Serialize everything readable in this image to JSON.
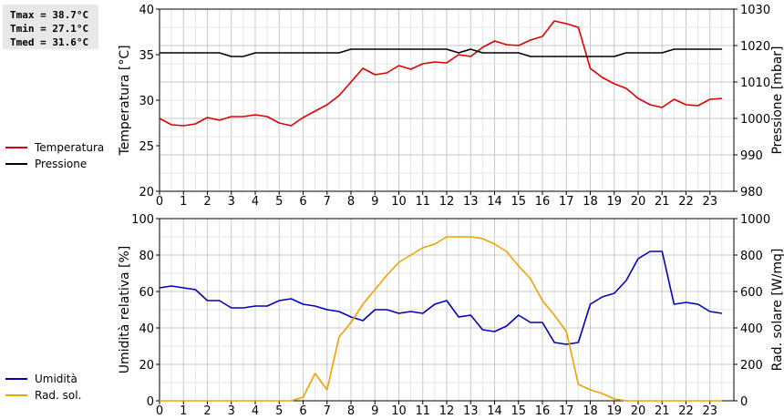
{
  "stats": {
    "tmax": "Tmax = 38.7°C",
    "tmin": "Tmin = 27.1°C",
    "tmed": "Tmed = 31.6°C"
  },
  "chart_data": [
    {
      "type": "line",
      "xlabel": "",
      "ylabel": "Temperatura [°C]",
      "y2label": "Pressione [mbar]",
      "xlim": [
        0,
        24
      ],
      "ylim": [
        20,
        40
      ],
      "y2lim": [
        980,
        1030
      ],
      "x_ticks": [
        0,
        1,
        2,
        3,
        4,
        5,
        6,
        7,
        8,
        9,
        10,
        11,
        12,
        13,
        14,
        15,
        16,
        17,
        18,
        19,
        20,
        21,
        22,
        23
      ],
      "y_ticks": [
        20,
        25,
        30,
        35,
        40
      ],
      "y2_ticks": [
        980,
        990,
        1000,
        1010,
        1020,
        1030
      ],
      "grid": true,
      "legend_position": "left",
      "series": [
        {
          "name": "Temperatura",
          "axis": "left",
          "color": "#dd0000",
          "x": [
            0,
            0.5,
            1,
            1.5,
            2,
            2.5,
            3,
            3.5,
            4,
            4.5,
            5,
            5.5,
            6,
            6.5,
            7,
            7.5,
            8,
            8.5,
            9,
            9.5,
            10,
            10.5,
            11,
            11.5,
            12,
            12.5,
            13,
            13.5,
            14,
            14.5,
            15,
            15.5,
            16,
            16.5,
            17,
            17.5,
            18,
            18.5,
            19,
            19.5,
            20,
            20.5,
            21,
            21.5,
            22,
            22.5,
            23,
            23.5
          ],
          "values": [
            28.0,
            27.3,
            27.2,
            27.4,
            28.1,
            27.8,
            28.2,
            28.2,
            28.4,
            28.2,
            27.5,
            27.2,
            28.1,
            28.8,
            29.5,
            30.5,
            32.0,
            33.5,
            32.8,
            33.0,
            33.8,
            33.4,
            34.0,
            34.2,
            34.1,
            35.0,
            34.8,
            35.8,
            36.5,
            36.1,
            36.0,
            36.6,
            37.0,
            38.7,
            38.4,
            38.0,
            33.5,
            32.5,
            31.8,
            31.3,
            30.2,
            29.5,
            29.2,
            30.1,
            29.5,
            29.4,
            30.1,
            30.2
          ]
        },
        {
          "name": "Pressione",
          "axis": "right",
          "color": "#000000",
          "x": [
            0,
            0.5,
            1,
            1.5,
            2,
            2.5,
            3,
            3.5,
            4,
            4.5,
            5,
            5.5,
            6,
            6.5,
            7,
            7.5,
            8,
            8.5,
            9,
            9.5,
            10,
            10.5,
            11,
            11.5,
            12,
            12.5,
            13,
            13.5,
            14,
            14.5,
            15,
            15.5,
            16,
            16.5,
            17,
            17.5,
            18,
            18.5,
            19,
            19.5,
            20,
            20.5,
            21,
            21.5,
            22,
            22.5,
            23,
            23.5
          ],
          "values": [
            1018,
            1018,
            1018,
            1018,
            1018,
            1018,
            1017,
            1017,
            1018,
            1018,
            1018,
            1018,
            1018,
            1018,
            1018,
            1018,
            1019,
            1019,
            1019,
            1019,
            1019,
            1019,
            1019,
            1019,
            1019,
            1018,
            1019,
            1018,
            1018,
            1018,
            1018,
            1017,
            1017,
            1017,
            1017,
            1017,
            1017,
            1017,
            1017,
            1018,
            1018,
            1018,
            1018,
            1019,
            1019,
            1019,
            1019,
            1019
          ]
        }
      ]
    },
    {
      "type": "line",
      "xlabel": "",
      "ylabel": "Umidità relativa [%]",
      "y2label": "Rad. solare [W/mq]",
      "xlim": [
        0,
        24
      ],
      "ylim": [
        0,
        100
      ],
      "y2lim": [
        0,
        1000
      ],
      "x_ticks": [
        0,
        1,
        2,
        3,
        4,
        5,
        6,
        7,
        8,
        9,
        10,
        11,
        12,
        13,
        14,
        15,
        16,
        17,
        18,
        19,
        20,
        21,
        22,
        23
      ],
      "y_ticks": [
        0,
        20,
        40,
        60,
        80,
        100
      ],
      "y2_ticks": [
        0,
        200,
        400,
        600,
        800,
        1000
      ],
      "grid": true,
      "legend_position": "left",
      "series": [
        {
          "name": "Umidità",
          "axis": "left",
          "color": "#0000bb",
          "x": [
            0,
            0.5,
            1,
            1.5,
            2,
            2.5,
            3,
            3.5,
            4,
            4.5,
            5,
            5.5,
            6,
            6.5,
            7,
            7.5,
            8,
            8.5,
            9,
            9.5,
            10,
            10.5,
            11,
            11.5,
            12,
            12.5,
            13,
            13.5,
            14,
            14.5,
            15,
            15.5,
            16,
            16.5,
            17,
            17.5,
            18,
            18.5,
            19,
            19.5,
            20,
            20.5,
            21,
            21.5,
            22,
            22.5,
            23,
            23.5
          ],
          "values": [
            62,
            63,
            62,
            61,
            55,
            55,
            51,
            51,
            52,
            52,
            55,
            56,
            53,
            52,
            50,
            49,
            46,
            44,
            50,
            50,
            48,
            49,
            48,
            53,
            55,
            46,
            47,
            39,
            38,
            41,
            47,
            43,
            43,
            32,
            31,
            32,
            53,
            57,
            59,
            66,
            78,
            82,
            82,
            53,
            54,
            53,
            49,
            48
          ]
        },
        {
          "name": "Rad. sol.",
          "axis": "right",
          "color": "#f0a000",
          "x": [
            0,
            0.5,
            1,
            1.5,
            2,
            2.5,
            3,
            3.5,
            4,
            4.5,
            5,
            5.5,
            6,
            6.5,
            7,
            7.5,
            8,
            8.5,
            9,
            9.5,
            10,
            10.5,
            11,
            11.5,
            12,
            12.5,
            13,
            13.5,
            14,
            14.5,
            15,
            15.5,
            16,
            16.5,
            17,
            17.5,
            18,
            18.5,
            19,
            19.5,
            20,
            20.5,
            21,
            21.5,
            22,
            22.5,
            23,
            23.5
          ],
          "values": [
            0,
            0,
            0,
            0,
            0,
            0,
            0,
            0,
            0,
            0,
            0,
            0,
            20,
            150,
            60,
            350,
            430,
            530,
            610,
            690,
            760,
            800,
            840,
            860,
            900,
            900,
            900,
            890,
            860,
            820,
            740,
            670,
            550,
            470,
            380,
            90,
            60,
            40,
            10,
            0,
            0,
            0,
            0,
            0,
            0,
            0,
            0,
            0
          ]
        }
      ]
    }
  ]
}
